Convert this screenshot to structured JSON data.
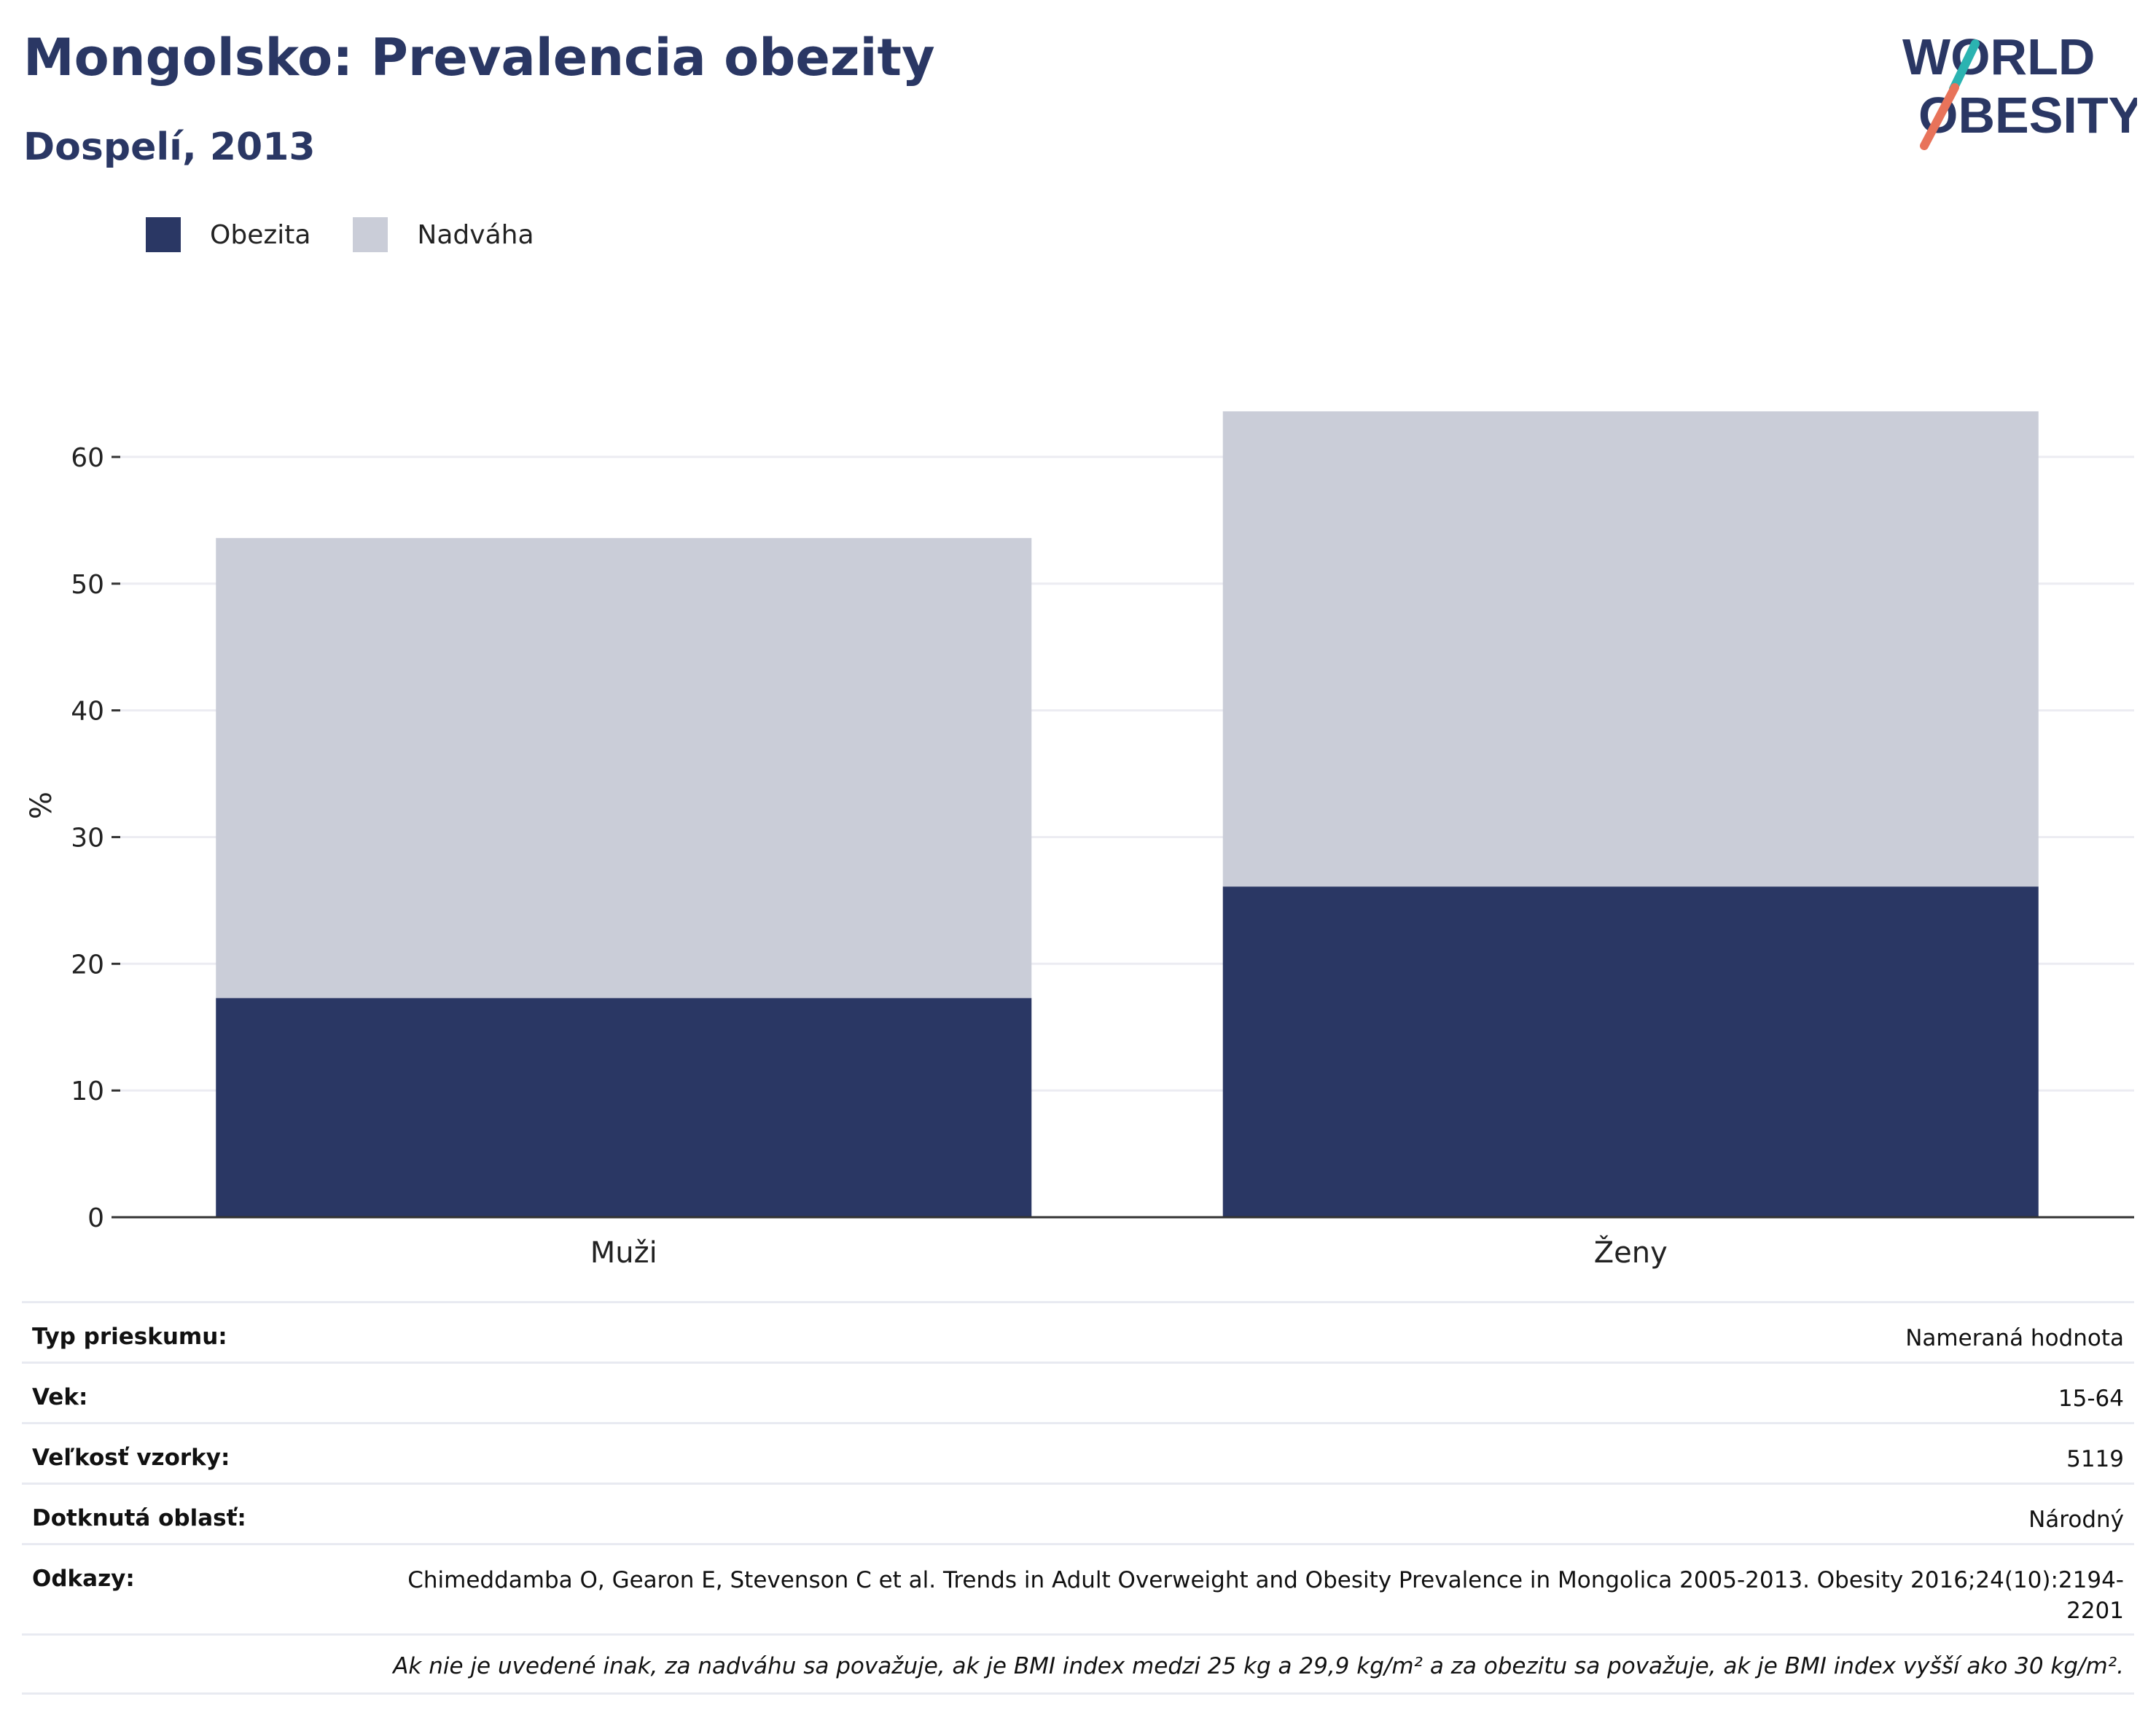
{
  "header": {
    "title": "Mongolsko: Prevalencia obezity",
    "subtitle": "Dospelí, 2013"
  },
  "logo": {
    "line1": "WORLD",
    "line2": "OBESITY",
    "colors": {
      "text": "#2a3764",
      "teal": "#2bb3b1",
      "coral": "#e8735a"
    }
  },
  "legend": {
    "items": [
      {
        "label": "Obezita",
        "color": "#2a3764"
      },
      {
        "label": "Nadváha",
        "color": "#cacdd8"
      }
    ]
  },
  "chart_data": {
    "type": "bar",
    "stacked": true,
    "categories": [
      "Muži",
      "Ženy"
    ],
    "series": [
      {
        "name": "Obezita",
        "values": [
          17.3,
          26.1
        ],
        "color": "#2a3764"
      },
      {
        "name": "Nadváha",
        "values": [
          36.3,
          37.5
        ],
        "color": "#cacdd8"
      }
    ],
    "ylabel": "%",
    "ylim": [
      0,
      65
    ],
    "yticks": [
      0,
      10,
      20,
      30,
      40,
      50,
      60
    ],
    "grid": true,
    "legend_position": "top-left"
  },
  "info": {
    "rows": [
      {
        "key": "Typ prieskumu:",
        "value": "Nameraná hodnota"
      },
      {
        "key": "Vek:",
        "value": "15-64"
      },
      {
        "key": "Veľkosť vzorky:",
        "value": "5119"
      },
      {
        "key": "Dotknutá oblasť:",
        "value": "Národný"
      },
      {
        "key": "Odkazy:",
        "value": "Chimeddamba O, Gearon E, Stevenson C et al. Trends in Adult Overweight and Obesity Prevalence in Mongolica 2005-2013. Obesity 2016;24(10):2194-2201"
      }
    ],
    "footnote": "Ak nie je uvedené inak, za nadváhu sa považuje, ak je BMI index medzi 25 kg a 29,9 kg/m² a za obezitu sa považuje, ak je BMI index vyšší ako 30 kg/m²."
  }
}
